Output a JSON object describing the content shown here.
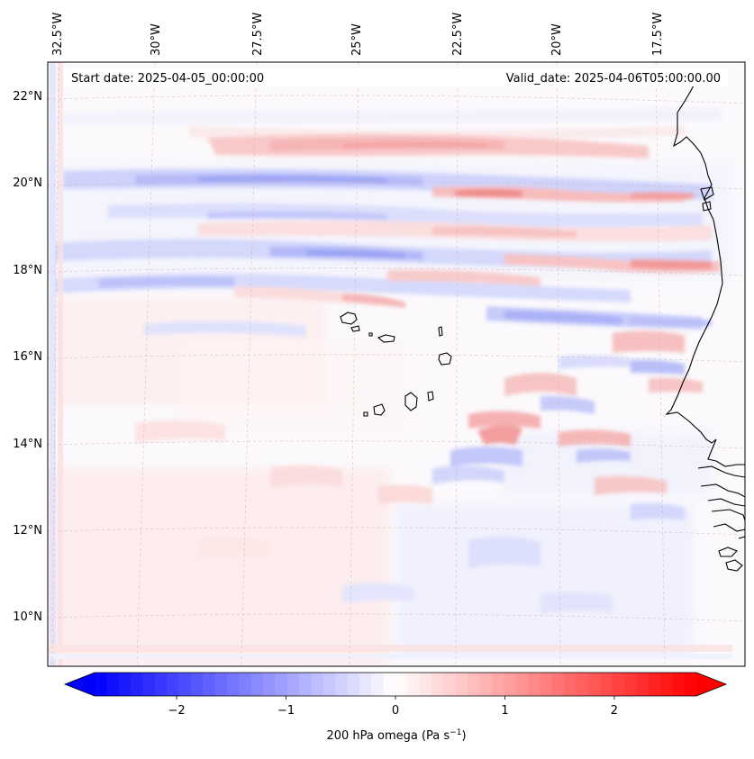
{
  "map": {
    "projection": "lambert-conformal",
    "field_colormap": "bwr",
    "start_date_label": "Start date: 2025-04-05_00:00:00",
    "valid_date_label": "Valid_date: 2025-04-06T05:00:00.00",
    "lon_labels": [
      "32.5°W",
      "30°W",
      "27.5°W",
      "25°W",
      "22.5°W",
      "20°W",
      "17.5°W"
    ],
    "lat_labels": [
      "22°N",
      "20°N",
      "18°N",
      "16°N",
      "14°N",
      "12°N",
      "10°N"
    ]
  },
  "colorbar": {
    "label_prefix": "200 hPa omega (Pa s",
    "label_exp": "−1",
    "label_suffix": ")",
    "tick_labels": [
      "−2",
      "−1",
      "0",
      "1",
      "2"
    ],
    "ticks": [
      -2,
      -1,
      0,
      1,
      2
    ],
    "vmin": -2.75,
    "vmax": 2.75,
    "low_color": "#0000ff",
    "mid_color": "#ffffff",
    "high_color": "#ff0000"
  }
}
